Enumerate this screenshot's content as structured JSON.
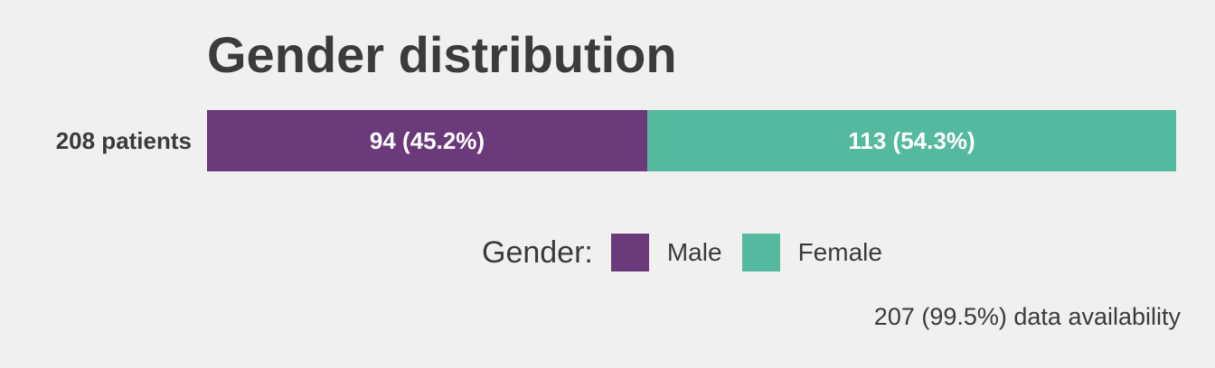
{
  "chart_data": {
    "type": "bar",
    "orientation": "horizontal-stacked",
    "title": "Gender distribution",
    "categories": [
      "208 patients"
    ],
    "series": [
      {
        "name": "Male",
        "values": [
          94
        ],
        "label": "94 (45.2%)",
        "color": "#6b3a7a"
      },
      {
        "name": "Female",
        "values": [
          113
        ],
        "label": "113 (54.3%)",
        "color": "#55b99f"
      }
    ],
    "total": 208,
    "legend": {
      "title": "Gender:",
      "position": "bottom"
    },
    "footnote": "207 (99.5%) data availability",
    "grid": false
  }
}
